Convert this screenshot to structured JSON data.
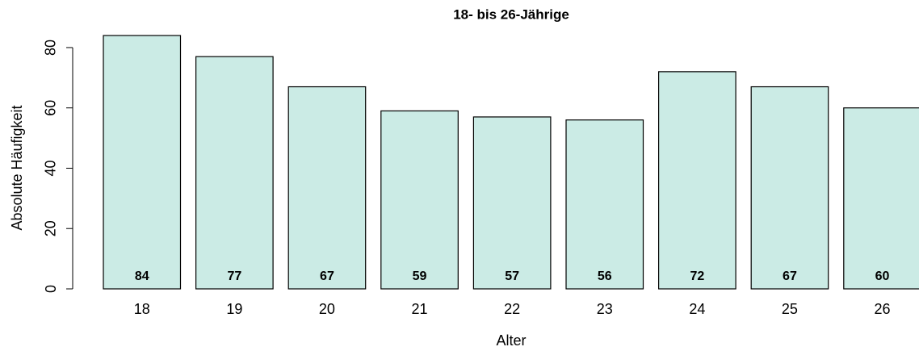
{
  "chart_data": {
    "type": "bar",
    "title": "18- bis 26-Jährige",
    "x_label": "Alter",
    "y_label": "Absolute Häufigkeit",
    "categories": [
      "18",
      "19",
      "20",
      "21",
      "22",
      "23",
      "24",
      "25",
      "26"
    ],
    "values": [
      84,
      77,
      67,
      59,
      57,
      56,
      72,
      67,
      60
    ],
    "color": "#cbebe5",
    "ylim": [
      0,
      84
    ],
    "yticks": [
      0,
      20,
      40,
      60,
      80
    ],
    "grid": false
  }
}
